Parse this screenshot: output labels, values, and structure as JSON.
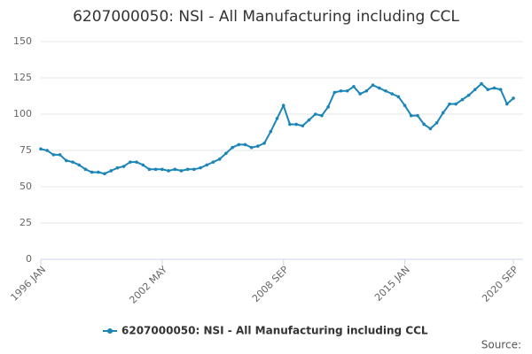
{
  "chart_data": {
    "type": "line",
    "title": "6207000050: NSI - All Manufacturing including CCL",
    "source_label": "Source:",
    "categories": [
      "1996 JAN",
      null,
      null,
      null,
      null,
      null,
      null,
      null,
      null,
      null,
      null,
      null,
      null,
      null,
      null,
      null,
      null,
      null,
      null,
      "2002 MAY",
      null,
      null,
      null,
      null,
      null,
      null,
      null,
      null,
      null,
      null,
      null,
      null,
      null,
      null,
      null,
      null,
      null,
      null,
      "2008 SEP",
      null,
      null,
      null,
      null,
      null,
      null,
      null,
      null,
      null,
      null,
      null,
      null,
      null,
      null,
      null,
      null,
      null,
      null,
      "2015 JAN",
      null,
      null,
      null,
      null,
      null,
      null,
      null,
      null,
      null,
      null,
      null,
      null,
      null,
      null,
      null,
      null,
      "2020 SEP"
    ],
    "series": [
      {
        "name": "6207000050: NSI - All Manufacturing including CCL",
        "color": "#1b85b8",
        "values": [
          76,
          75,
          72,
          72,
          68,
          67,
          65,
          62,
          60,
          60,
          59,
          61,
          63,
          64,
          67,
          67,
          65,
          62,
          62,
          62,
          61,
          62,
          61,
          62,
          62,
          63,
          65,
          67,
          69,
          73,
          77,
          79,
          79,
          77,
          78,
          80,
          88,
          97,
          106,
          93,
          93,
          92,
          96,
          100,
          99,
          105,
          115,
          116,
          116,
          119,
          114,
          116,
          120,
          118,
          116,
          114,
          112,
          106,
          99,
          99,
          93,
          90,
          94,
          101,
          107,
          107,
          110,
          113,
          117,
          121,
          117,
          118,
          117,
          107,
          111
        ]
      }
    ],
    "ylim": [
      0,
      150
    ],
    "yticks": [
      0,
      25,
      50,
      75,
      100,
      125,
      150
    ],
    "grid": true,
    "legend": "bottom"
  }
}
